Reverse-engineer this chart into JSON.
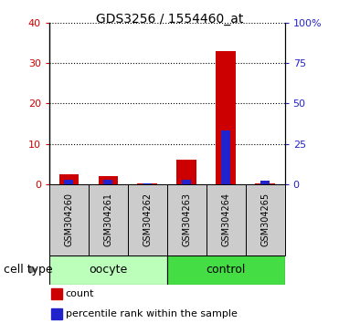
{
  "title": "GDS3256 / 1554460_at",
  "samples": [
    "GSM304260",
    "GSM304261",
    "GSM304262",
    "GSM304263",
    "GSM304264",
    "GSM304265"
  ],
  "count_values": [
    2.5,
    2.0,
    0.1,
    6.0,
    33.0,
    0.2
  ],
  "percentile_values": [
    2.5,
    2.5,
    0.5,
    2.5,
    33.0,
    2.0
  ],
  "left_ylim": [
    0,
    40
  ],
  "right_ylim": [
    0,
    100
  ],
  "left_yticks": [
    0,
    10,
    20,
    30,
    40
  ],
  "right_yticks": [
    0,
    25,
    50,
    75,
    100
  ],
  "right_yticklabels": [
    "0",
    "25",
    "50",
    "75",
    "100%"
  ],
  "left_yticklabels": [
    "0",
    "10",
    "20",
    "30",
    "40"
  ],
  "bar_color_red": "#cc0000",
  "bar_color_blue": "#2222cc",
  "oocyte_color": "#bbffbb",
  "control_color": "#44dd44",
  "oocyte_label": "oocyte",
  "control_label": "control",
  "cell_type_label": "cell type",
  "legend_count": "count",
  "legend_percentile": "percentile rank within the sample",
  "bar_width": 0.5,
  "title_fontsize": 10,
  "tick_fontsize": 8,
  "label_fontsize": 7,
  "cat_fontsize": 9,
  "legend_fontsize": 8,
  "gray_bg": "#cccccc"
}
